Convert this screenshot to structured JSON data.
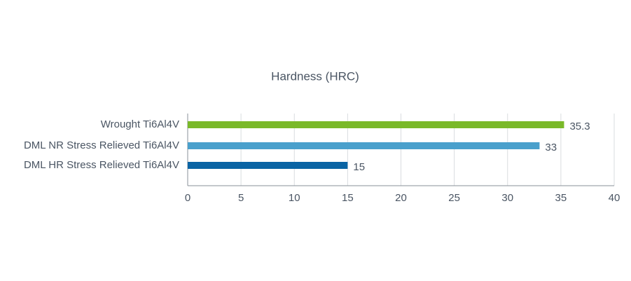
{
  "chart_data": {
    "type": "bar",
    "orientation": "horizontal",
    "title": "Hardness (HRC)",
    "categories": [
      "Wrought Ti6Al4V",
      "DML NR Stress Relieved Ti6Al4V",
      "DML HR Stress Relieved Ti6Al4V"
    ],
    "values": [
      35.3,
      33,
      15
    ],
    "colors": [
      "#7ab929",
      "#4aa0cc",
      "#0a64a4"
    ],
    "xlim": [
      0,
      40
    ],
    "xticks": [
      0,
      5,
      10,
      15,
      20,
      25,
      30,
      35,
      40
    ],
    "grid": true
  }
}
